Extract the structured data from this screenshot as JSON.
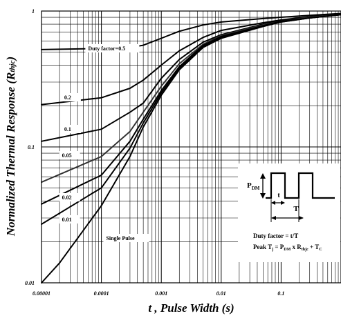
{
  "chart_data": {
    "type": "line",
    "xlabel": "t , Pulse Width (s)",
    "ylabel_main": "Normalized Thermal Response (R",
    "ylabel_sub": "thjc",
    "ylabel_end": ")",
    "xscale": "log",
    "yscale": "log",
    "xlim": [
      1e-05,
      1
    ],
    "ylim": [
      0.01,
      1
    ],
    "xticks": [
      {
        "v": 1e-05,
        "label": "0.00001"
      },
      {
        "v": 0.0001,
        "label": "0.0001"
      },
      {
        "v": 0.001,
        "label": "0.001"
      },
      {
        "v": 0.01,
        "label": "0.01"
      },
      {
        "v": 0.1,
        "label": "0.1"
      }
    ],
    "yticks": [
      {
        "v": 1,
        "label": "1"
      },
      {
        "v": 0.1,
        "label": "0.1"
      },
      {
        "v": 0.01,
        "label": "0.01"
      }
    ],
    "grid": true,
    "series": [
      {
        "name": "Duty factor=0.5",
        "x": [
          1e-05,
          0.0001,
          0.0003,
          0.0005,
          0.001,
          0.002,
          0.005,
          0.01,
          0.05,
          0.1,
          0.3,
          1
        ],
        "y": [
          0.52,
          0.53,
          0.54,
          0.56,
          0.63,
          0.71,
          0.79,
          0.83,
          0.88,
          0.9,
          0.93,
          0.96
        ]
      },
      {
        "name": "0.2",
        "x": [
          1e-05,
          0.0001,
          0.0003,
          0.0005,
          0.001,
          0.002,
          0.005,
          0.01,
          0.05,
          0.1,
          0.3,
          1
        ],
        "y": [
          0.205,
          0.23,
          0.27,
          0.31,
          0.4,
          0.51,
          0.64,
          0.72,
          0.82,
          0.86,
          0.91,
          0.95
        ]
      },
      {
        "name": "0.1",
        "x": [
          1e-05,
          0.0001,
          0.0003,
          0.0005,
          0.001,
          0.002,
          0.005,
          0.01,
          0.05,
          0.1,
          0.3,
          1
        ],
        "y": [
          0.11,
          0.135,
          0.18,
          0.21,
          0.32,
          0.44,
          0.59,
          0.67,
          0.8,
          0.85,
          0.9,
          0.95
        ]
      },
      {
        "name": "0.05",
        "x": [
          1e-05,
          0.0001,
          0.0003,
          0.0005,
          0.001,
          0.002,
          0.005,
          0.01,
          0.05,
          0.1,
          0.3,
          1
        ],
        "y": [
          0.055,
          0.085,
          0.13,
          0.18,
          0.28,
          0.41,
          0.57,
          0.66,
          0.79,
          0.84,
          0.9,
          0.94
        ]
      },
      {
        "name": "0.02",
        "x": [
          1e-05,
          0.0001,
          0.0003,
          0.0005,
          0.001,
          0.002,
          0.005,
          0.01,
          0.05,
          0.1,
          0.3,
          1
        ],
        "y": [
          0.038,
          0.062,
          0.11,
          0.16,
          0.26,
          0.39,
          0.56,
          0.65,
          0.78,
          0.84,
          0.89,
          0.94
        ]
      },
      {
        "name": "0.01",
        "x": [
          1e-05,
          0.0001,
          0.0003,
          0.0005,
          0.001,
          0.002,
          0.005,
          0.01,
          0.05,
          0.1,
          0.3,
          1
        ],
        "y": [
          0.027,
          0.05,
          0.098,
          0.15,
          0.25,
          0.38,
          0.55,
          0.64,
          0.78,
          0.83,
          0.89,
          0.94
        ]
      },
      {
        "name": "Single Pulse",
        "x": [
          1e-05,
          2e-05,
          0.0001,
          0.0003,
          0.0005,
          0.001,
          0.002,
          0.005,
          0.01,
          0.05,
          0.1,
          0.3,
          1
        ],
        "y": [
          0.01,
          0.014,
          0.037,
          0.085,
          0.14,
          0.24,
          0.37,
          0.54,
          0.63,
          0.77,
          0.83,
          0.89,
          0.94
        ]
      }
    ],
    "inset": {
      "pdm_main": "P",
      "pdm_sub": "DM",
      "t_label": "t",
      "T_label": "T",
      "duty_text": "Duty factor = t/T",
      "peak_1": "Peak T",
      "peak_1_sub": "j",
      "peak_2": " = P",
      "peak_2_sub": "DM",
      "peak_3": " x R",
      "peak_3_sub": "thjc",
      "peak_4": " + T",
      "peak_4_sub": "C"
    }
  }
}
